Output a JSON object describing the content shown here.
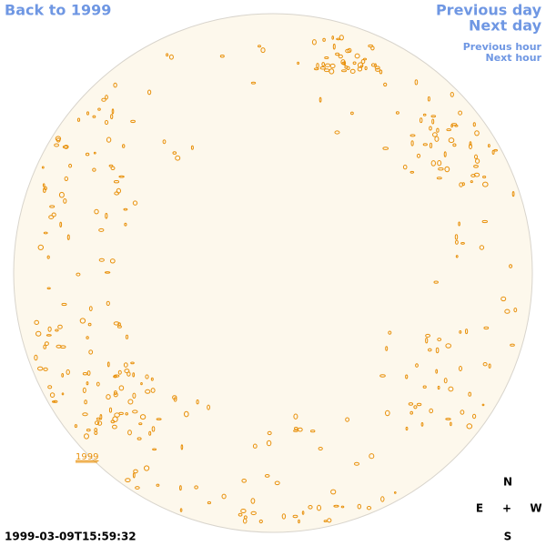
{
  "nav": {
    "back": "Back to 1999",
    "previous_day": "Previous day",
    "next_day": "Next day",
    "previous_hour": "Previous hour",
    "next_hour": "Next hour"
  },
  "disk_label": "1999",
  "timestamp": "1999-03-09T15:59:32",
  "compass": {
    "north": "N",
    "east": "E",
    "center": "+",
    "west": "W",
    "south": "S"
  }
}
